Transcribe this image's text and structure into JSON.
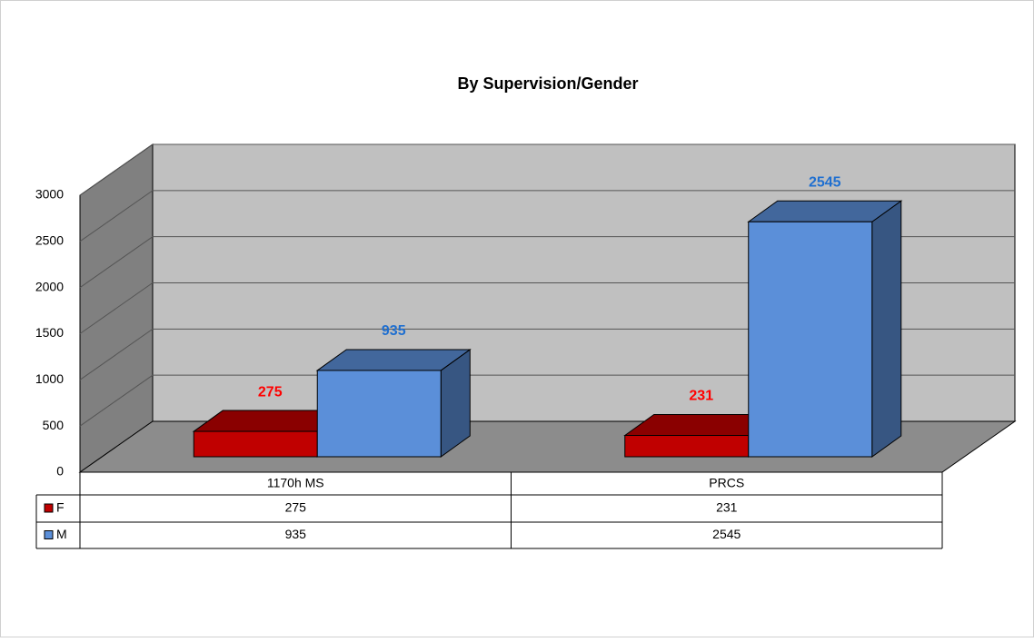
{
  "chart_data": {
    "type": "bar3d",
    "title": "By Supervision/Gender",
    "categories": [
      "1170h MS",
      "PRCS"
    ],
    "series": [
      {
        "name": "F",
        "color": "#c00000",
        "values": [
          275,
          231
        ]
      },
      {
        "name": "M",
        "color": "#5b8fd9",
        "values": [
          935,
          2545
        ]
      }
    ],
    "ylim": [
      0,
      3000
    ],
    "yticks": [
      0,
      500,
      1000,
      1500,
      2000,
      2500,
      3000
    ],
    "grid": true,
    "legend": "table"
  }
}
